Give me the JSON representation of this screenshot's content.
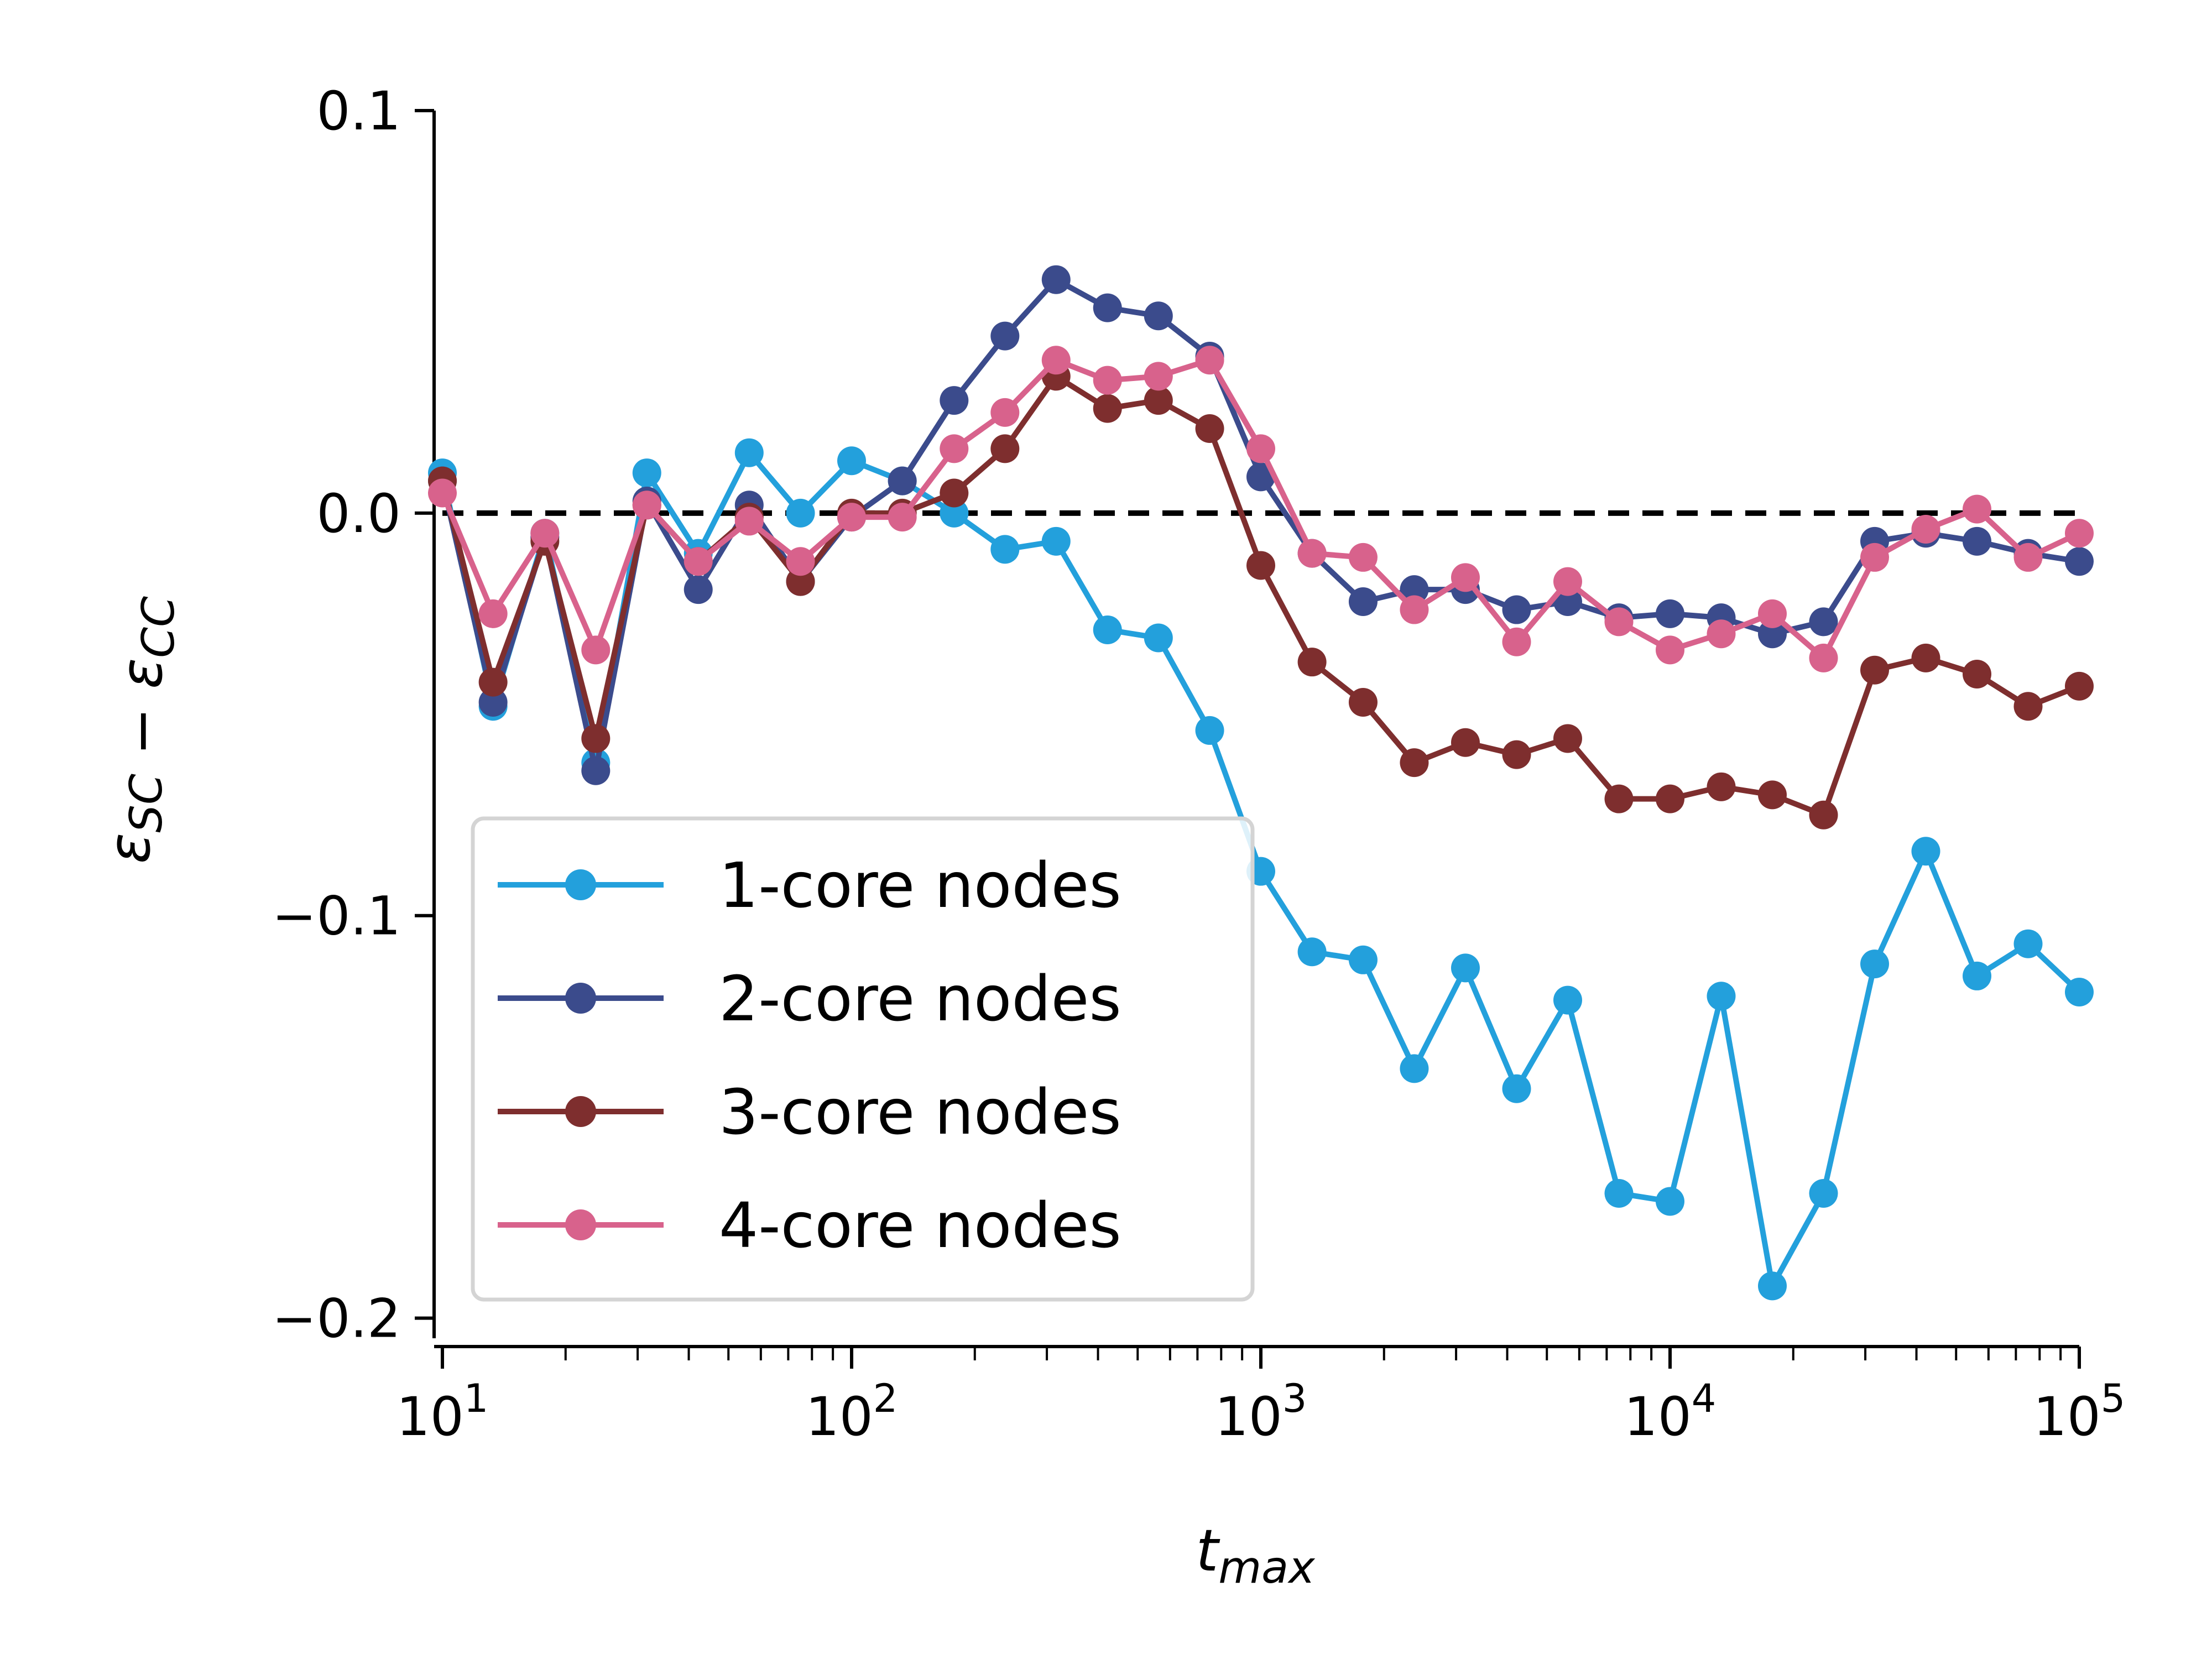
{
  "chart_data": {
    "type": "line",
    "xscale": "log",
    "xlim": [
      10,
      100000
    ],
    "ylim": [
      -0.205,
      0.1
    ],
    "xlabel": "t_max",
    "ylabel": "ε_SC − ε_CC",
    "x_ticks": [
      {
        "value": 10,
        "base": "10",
        "exp": "1"
      },
      {
        "value": 100,
        "base": "10",
        "exp": "2"
      },
      {
        "value": 1000,
        "base": "10",
        "exp": "3"
      },
      {
        "value": 10000,
        "base": "10",
        "exp": "4"
      },
      {
        "value": 100000,
        "base": "10",
        "exp": "5"
      }
    ],
    "y_ticks": [
      {
        "value": 0.1,
        "label": "0.1"
      },
      {
        "value": 0.0,
        "label": "0.0"
      },
      {
        "value": -0.1,
        "label": "−0.1"
      },
      {
        "value": -0.2,
        "label": "−0.2"
      }
    ],
    "reference_line": {
      "y": 0,
      "style": "dashed",
      "color": "#000000"
    },
    "legend": {
      "position": "lower-left"
    },
    "x": [
      10,
      13.3,
      17.8,
      23.7,
      31.6,
      42.2,
      56.2,
      75,
      100,
      133,
      178,
      237,
      316,
      422,
      562,
      750,
      1000,
      1334,
      1778,
      2371,
      3162,
      4217,
      5623,
      7499,
      10000,
      13335,
      17783,
      23714,
      31623,
      42170,
      56234,
      74989,
      100000
    ],
    "series": [
      {
        "name": "1-core nodes",
        "color": "#23a0dc",
        "values": [
          0.01,
          -0.048,
          -0.005,
          -0.062,
          0.01,
          -0.01,
          0.015,
          0.0,
          0.013,
          0.008,
          0.0,
          -0.009,
          -0.007,
          -0.029,
          -0.031,
          -0.054,
          -0.089,
          -0.109,
          -0.111,
          -0.138,
          -0.113,
          -0.143,
          -0.121,
          -0.169,
          -0.171,
          -0.12,
          -0.192,
          -0.169,
          -0.112,
          -0.084,
          -0.115,
          -0.107,
          -0.119
        ]
      },
      {
        "name": "2-core nodes",
        "color": "#3b4b8c",
        "values": [
          0.008,
          -0.047,
          -0.006,
          -0.064,
          0.003,
          -0.019,
          0.002,
          -0.017,
          -0.001,
          0.008,
          0.028,
          0.044,
          0.058,
          0.051,
          0.049,
          0.039,
          0.009,
          -0.01,
          -0.022,
          -0.019,
          -0.019,
          -0.024,
          -0.022,
          -0.026,
          -0.025,
          -0.026,
          -0.03,
          -0.027,
          -0.007,
          -0.005,
          -0.007,
          -0.01,
          -0.012
        ]
      },
      {
        "name": "3-core nodes",
        "color": "#7e2e2e",
        "values": [
          0.008,
          -0.042,
          -0.007,
          -0.056,
          0.002,
          -0.012,
          -0.001,
          -0.017,
          0.0,
          0.0,
          0.005,
          0.016,
          0.034,
          0.026,
          0.028,
          0.021,
          -0.013,
          -0.037,
          -0.047,
          -0.062,
          -0.057,
          -0.06,
          -0.056,
          -0.071,
          -0.071,
          -0.068,
          -0.07,
          -0.075,
          -0.039,
          -0.036,
          -0.04,
          -0.048,
          -0.043
        ]
      },
      {
        "name": "4-core nodes",
        "color": "#d8628c",
        "values": [
          0.005,
          -0.025,
          -0.005,
          -0.034,
          0.002,
          -0.012,
          -0.002,
          -0.012,
          -0.001,
          -0.001,
          0.016,
          0.025,
          0.038,
          0.033,
          0.034,
          0.038,
          0.016,
          -0.01,
          -0.011,
          -0.024,
          -0.016,
          -0.032,
          -0.017,
          -0.027,
          -0.034,
          -0.03,
          -0.025,
          -0.036,
          -0.011,
          -0.004,
          0.001,
          -0.011,
          -0.005
        ]
      }
    ]
  }
}
